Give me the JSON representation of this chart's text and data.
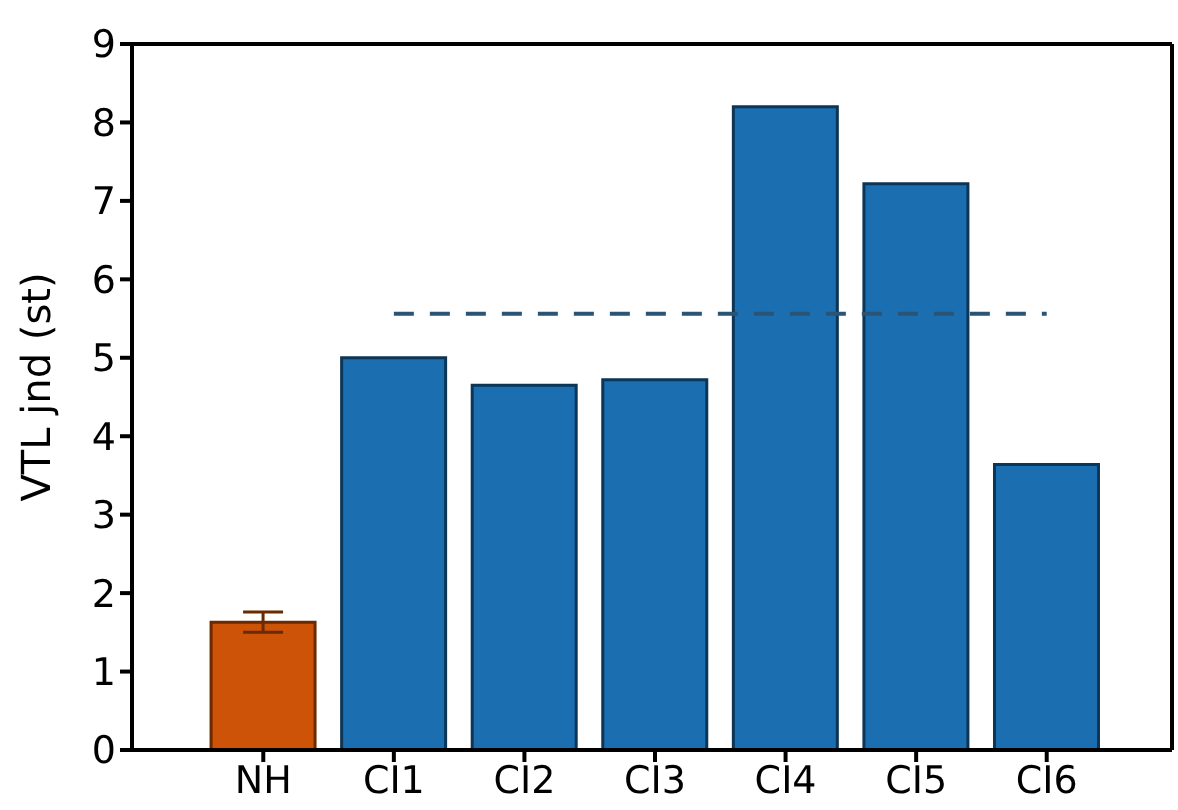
{
  "chart_data": {
    "type": "bar",
    "ylabel": "VTL jnd (st)",
    "categories": [
      "NH",
      "CI1",
      "CI2",
      "CI3",
      "CI4",
      "CI5",
      "CI6"
    ],
    "series": [
      {
        "values": [
          1.63,
          5.0,
          4.65,
          4.72,
          8.2,
          7.22,
          3.64
        ],
        "colors": [
          "#cc5308",
          "#1b6eb0",
          "#1b6eb0",
          "#1b6eb0",
          "#1b6eb0",
          "#1b6eb0",
          "#1b6eb0"
        ],
        "errors": [
          0.13,
          null,
          null,
          null,
          null,
          null,
          null
        ]
      },
      {
        "type": "line",
        "x": [
          "CI1",
          "CI2",
          "CI3",
          "CI4",
          "CI5",
          "CI6"
        ],
        "values": [
          5.56,
          5.56,
          5.56,
          5.56,
          5.56,
          5.56
        ],
        "color": "#2a5474",
        "line_style": "dashed",
        "marker": "none"
      }
    ],
    "ylim": [
      0,
      9
    ],
    "yticks": [
      0,
      1,
      2,
      3,
      4,
      5,
      6,
      7,
      8,
      9
    ],
    "grid": false,
    "legend": false
  }
}
